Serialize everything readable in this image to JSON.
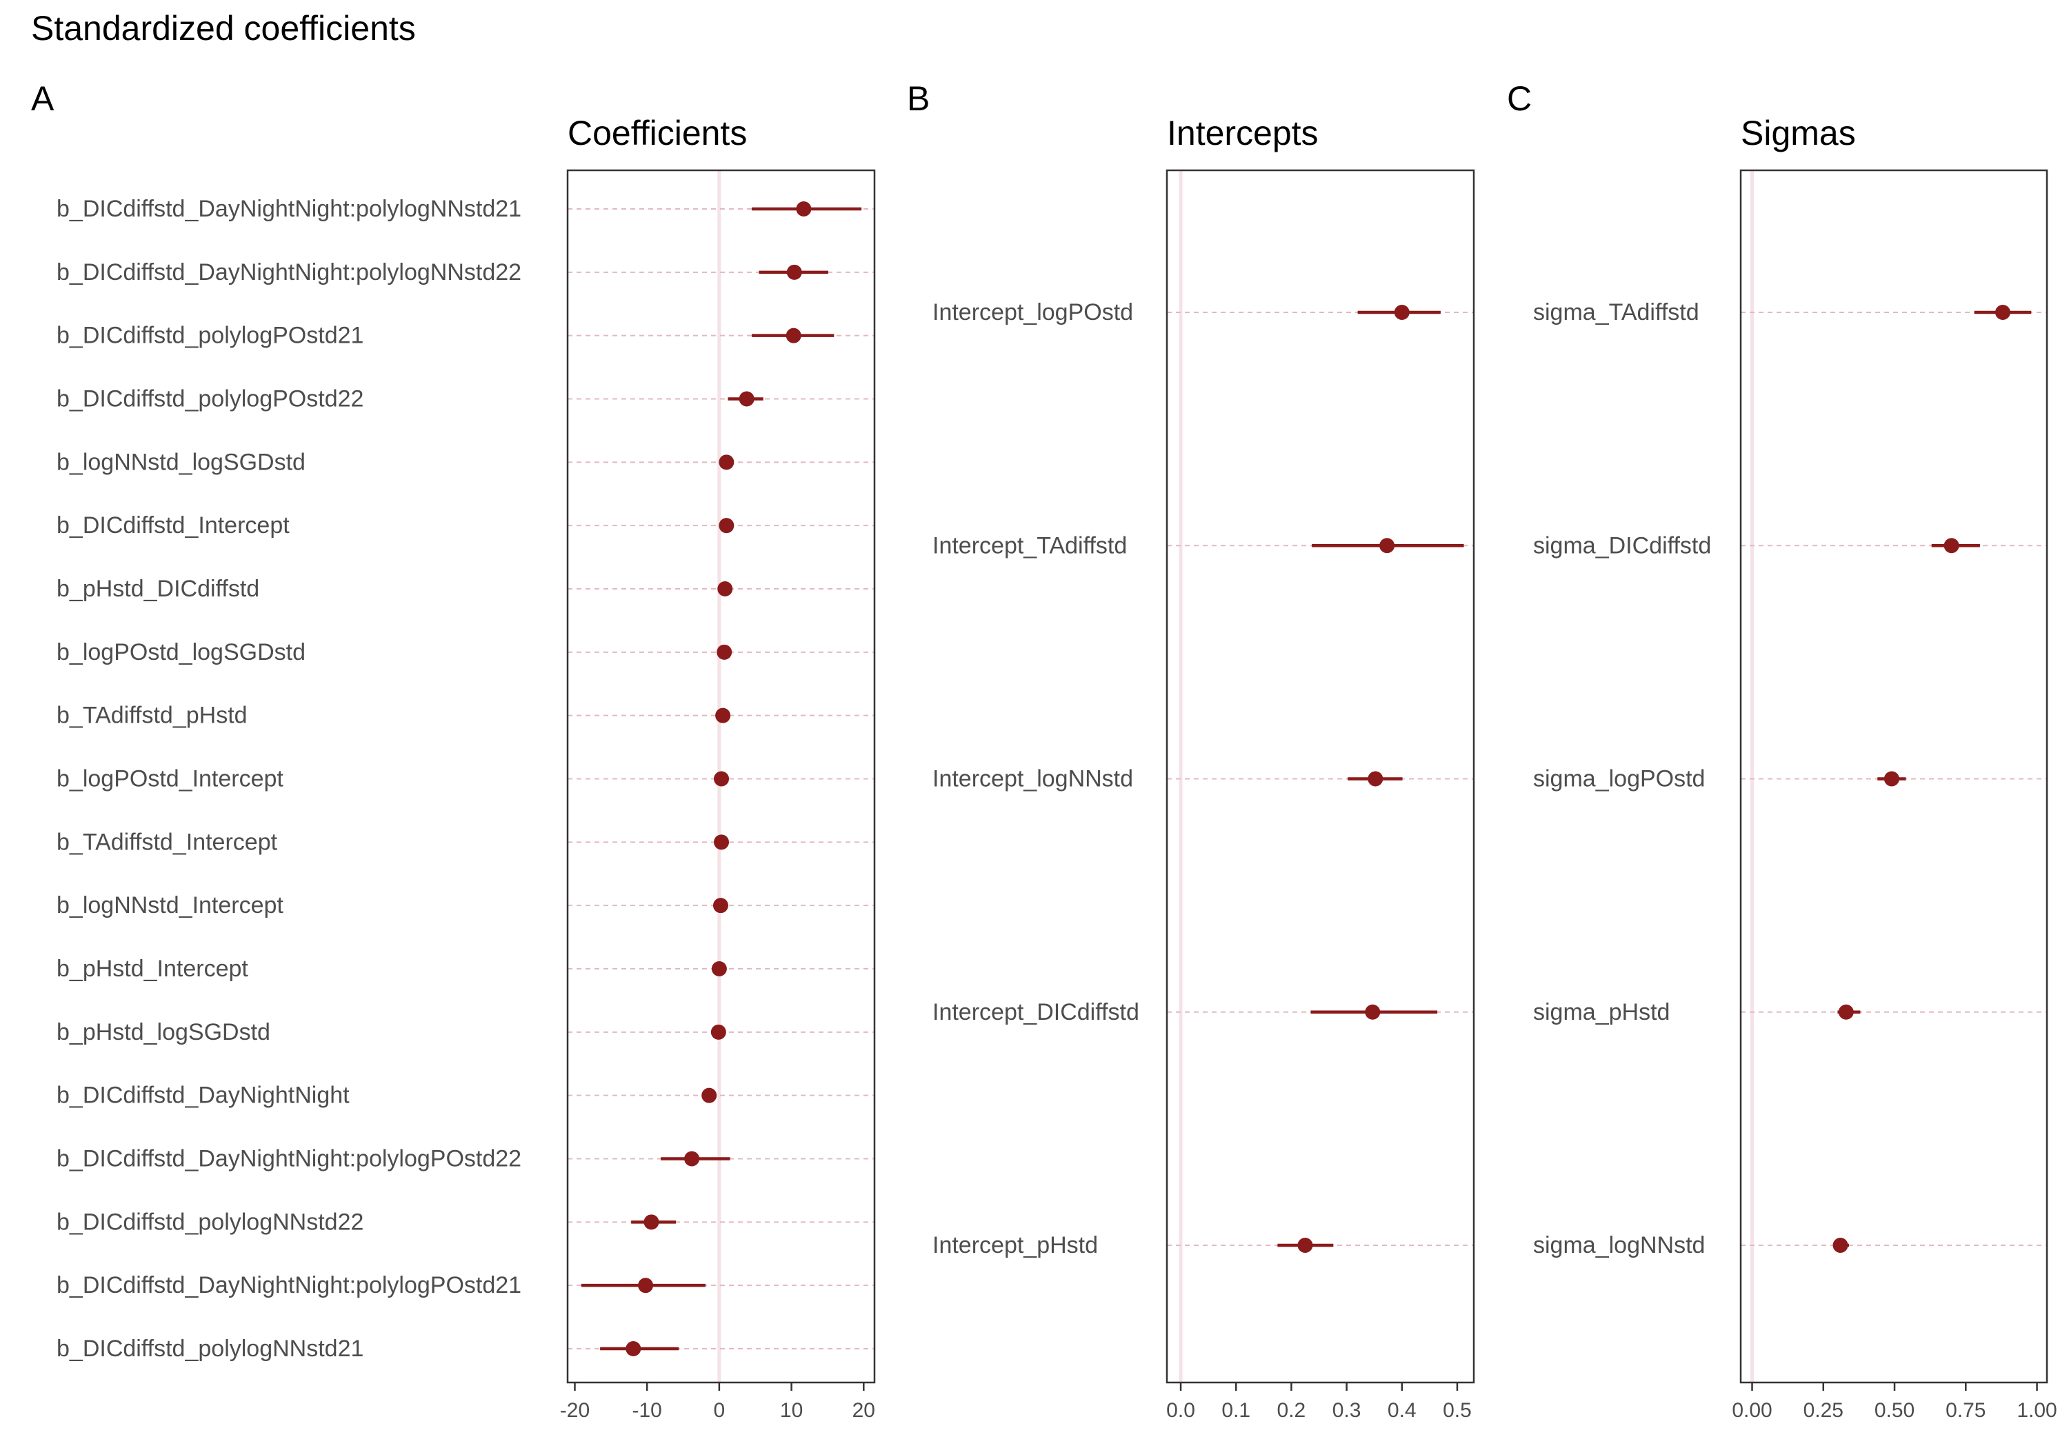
{
  "figure": {
    "title": "Standardized coefficients"
  },
  "colors": {
    "point": "#8b1a1a",
    "interval": "#8b1a1a"
  },
  "chart_data": [
    {
      "type": "scatter",
      "tag": "A",
      "title": "Coefficients",
      "xlim": [
        -21,
        21.5
      ],
      "xticks": [
        -20,
        -10,
        0,
        10,
        20
      ],
      "xtick_labels": [
        "-20",
        "-10",
        "0",
        "10",
        "20"
      ],
      "ref_line": 0,
      "grid": "horizontal dashed",
      "categories": [
        "b_DICdiffstd_DayNightNight:polylogNNstd21",
        "b_DICdiffstd_DayNightNight:polylogNNstd22",
        "b_DICdiffstd_polylogPOstd21",
        "b_DICdiffstd_polylogPOstd22",
        "b_logNNstd_logSGDstd",
        "b_DICdiffstd_Intercept",
        "b_pHstd_DICdiffstd",
        "b_logPOstd_logSGDstd",
        "b_TAdiffstd_pHstd",
        "b_logPOstd_Intercept",
        "b_TAdiffstd_Intercept",
        "b_logNNstd_Intercept",
        "b_pHstd_Intercept",
        "b_pHstd_logSGDstd",
        "b_DICdiffstd_DayNightNight",
        "b_DICdiffstd_DayNightNight:polylogPOstd22",
        "b_DICdiffstd_polylogNNstd22",
        "b_DICdiffstd_DayNightNight:polylogPOstd21",
        "b_DICdiffstd_polylogNNstd21"
      ],
      "estimate": [
        11.7,
        10.4,
        10.3,
        3.8,
        1.0,
        1.0,
        0.8,
        0.7,
        0.5,
        0.3,
        0.3,
        0.2,
        0.0,
        -0.1,
        -1.4,
        -3.8,
        -9.4,
        -10.2,
        -11.9
      ],
      "lower": [
        4.5,
        5.5,
        4.5,
        1.2,
        1.0,
        1.0,
        0.8,
        0.7,
        0.5,
        0.3,
        0.3,
        0.2,
        0.0,
        -0.1,
        -1.4,
        -8.1,
        -12.2,
        -19.1,
        -16.5
      ],
      "upper": [
        19.7,
        15.1,
        15.9,
        6.1,
        1.0,
        1.0,
        0.8,
        0.7,
        0.5,
        0.3,
        0.3,
        0.2,
        0.0,
        -0.1,
        -1.4,
        1.5,
        -6.0,
        -1.9,
        -5.6
      ]
    },
    {
      "type": "scatter",
      "tag": "B",
      "title": "Intercepts",
      "xlim": [
        -0.025,
        0.53
      ],
      "xticks": [
        0.0,
        0.1,
        0.2,
        0.3,
        0.4,
        0.5
      ],
      "xtick_labels": [
        "0.0",
        "0.1",
        "0.2",
        "0.3",
        "0.4",
        "0.5"
      ],
      "ref_line": 0,
      "grid": "horizontal dashed",
      "categories": [
        "Intercept_logPOstd",
        "Intercept_TAdiffstd",
        "Intercept_logNNstd",
        "Intercept_DICdiffstd",
        "Intercept_pHstd"
      ],
      "estimate": [
        0.4,
        0.373,
        0.352,
        0.347,
        0.225
      ],
      "lower": [
        0.32,
        0.237,
        0.302,
        0.235,
        0.175
      ],
      "upper": [
        0.47,
        0.512,
        0.401,
        0.464,
        0.276
      ]
    },
    {
      "type": "scatter",
      "tag": "C",
      "title": "Sigmas",
      "xlim": [
        -0.04,
        1.035
      ],
      "xticks": [
        0.0,
        0.25,
        0.5,
        0.75,
        1.0
      ],
      "xtick_labels": [
        "0.00",
        "0.25",
        "0.50",
        "0.75",
        "1.00"
      ],
      "ref_line": 0,
      "grid": "horizontal dashed",
      "categories": [
        "sigma_TAdiffstd",
        "sigma_DICdiffstd",
        "sigma_logPOstd",
        "sigma_pHstd",
        "sigma_logNNstd"
      ],
      "estimate": [
        0.88,
        0.7,
        0.49,
        0.33,
        0.31
      ],
      "lower": [
        0.78,
        0.63,
        0.44,
        0.3,
        0.29
      ],
      "upper": [
        0.98,
        0.8,
        0.54,
        0.38,
        0.34
      ]
    }
  ]
}
